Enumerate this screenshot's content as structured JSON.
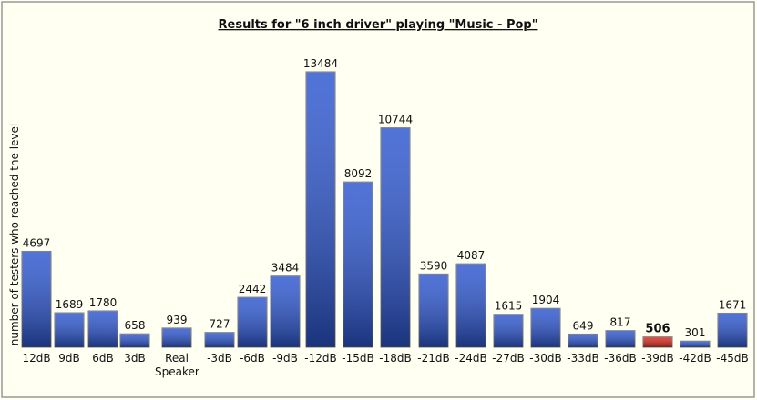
{
  "chart_data": {
    "type": "bar",
    "title": "Results for \"6 inch driver\" playing \"Music - Pop\"",
    "y_label": "number of testers who reached the level",
    "categories": [
      "12dB",
      "9dB",
      "6dB",
      "3dB",
      "Real Speaker",
      "-3dB",
      "-6dB",
      "-9dB",
      "-12dB",
      "-15dB",
      "-18dB",
      "-21dB",
      "-24dB",
      "-27dB",
      "-30dB",
      "-33dB",
      "-36dB",
      "-39dB",
      "-42dB",
      "-45dB"
    ],
    "values": [
      4697,
      1689,
      1780,
      658,
      939,
      727,
      2442,
      3484,
      13484,
      8092,
      10744,
      3590,
      4087,
      1615,
      1904,
      649,
      817,
      506,
      301,
      1671
    ],
    "colors": [
      "#2b55cf",
      "#2b55cf",
      "#2b55cf",
      "#2b55cf",
      "#2b55cf",
      "#2b55cf",
      "#2b55cf",
      "#2b55cf",
      "#2b55cf",
      "#2b55cf",
      "#2b55cf",
      "#2b55cf",
      "#2b55cf",
      "#2b55cf",
      "#2b55cf",
      "#2b55cf",
      "#2b55cf",
      "#d8291a",
      "#2b55cf",
      "#2b55cf"
    ]
  }
}
